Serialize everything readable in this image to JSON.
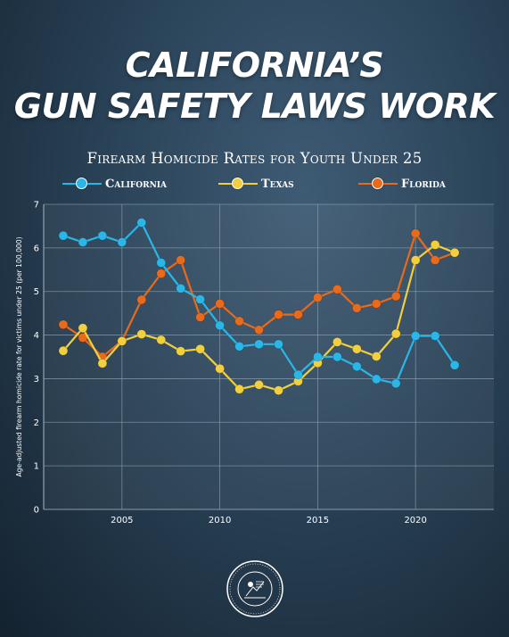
{
  "headline": {
    "line1": "CALIFORNIA’S",
    "line2": "GUN SAFETY LAWS WORK"
  },
  "colors": {
    "california": "#2bb6e8",
    "texas": "#f2cf3f",
    "florida": "#e86a1c",
    "grid": "#8fa3b3",
    "axis_text": "#ffffff"
  },
  "chart_data": {
    "type": "line",
    "title": "Firearm Homicide Rates for Youth Under 25",
    "xlabel": "",
    "ylabel": "Age-adjusted firearm homicide rate for victims under 25 (per 100,000)",
    "xlim": [
      2001,
      2024
    ],
    "ylim": [
      0,
      7
    ],
    "xticks": [
      2005,
      2010,
      2015,
      2020
    ],
    "yticks": [
      0,
      1,
      2,
      3,
      4,
      5,
      6,
      7
    ],
    "grid": true,
    "legend_position": "top",
    "series": [
      {
        "name": "California",
        "color": "#2bb6e8",
        "x": [
          2002,
          2003,
          2004,
          2005,
          2006,
          2007,
          2008,
          2009,
          2010,
          2011,
          2012,
          2013,
          2014,
          2015,
          2016,
          2017,
          2018,
          2019,
          2020,
          2021,
          2022
        ],
        "values": [
          6.28,
          6.13,
          6.28,
          6.13,
          6.58,
          5.66,
          5.07,
          4.82,
          4.22,
          3.74,
          3.79,
          3.79,
          3.09,
          3.5,
          3.5,
          3.28,
          2.99,
          2.89,
          3.98,
          3.98,
          3.31
        ]
      },
      {
        "name": "Texas",
        "color": "#f2cf3f",
        "x": [
          2002,
          2003,
          2004,
          2005,
          2006,
          2007,
          2008,
          2009,
          2010,
          2011,
          2012,
          2013,
          2014,
          2015,
          2016,
          2017,
          2018,
          2019,
          2020,
          2021,
          2022
        ],
        "values": [
          3.64,
          4.16,
          3.35,
          3.86,
          4.02,
          3.89,
          3.63,
          3.68,
          3.23,
          2.76,
          2.86,
          2.73,
          2.94,
          3.36,
          3.84,
          3.68,
          3.51,
          4.03,
          5.72,
          6.07,
          5.89
        ]
      },
      {
        "name": "Florida",
        "color": "#e86a1c",
        "x": [
          2002,
          2003,
          2004,
          2005,
          2006,
          2007,
          2008,
          2009,
          2010,
          2011,
          2012,
          2013,
          2014,
          2015,
          2016,
          2017,
          2018,
          2019,
          2020,
          2021,
          2022
        ],
        "values": [
          4.24,
          3.94,
          3.5,
          3.87,
          4.81,
          5.41,
          5.72,
          4.41,
          4.72,
          4.32,
          4.12,
          4.47,
          4.47,
          4.86,
          5.05,
          4.62,
          4.72,
          4.89,
          6.33,
          5.72,
          5.89
        ]
      }
    ]
  }
}
